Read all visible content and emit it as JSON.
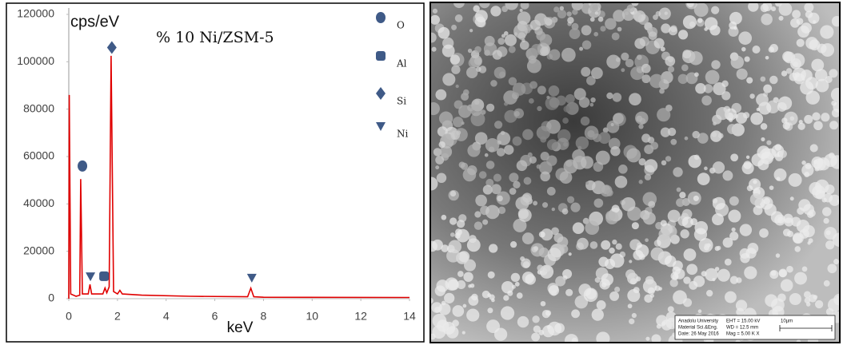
{
  "chart_data": {
    "type": "line",
    "title": "% 10 Ni/ZSM-5",
    "ylabel": "cps/eV",
    "xlabel": "keV",
    "xlim": [
      0,
      14
    ],
    "xticks": [
      0,
      2,
      4,
      6,
      8,
      10,
      12,
      14
    ],
    "ylim": [
      0,
      120000
    ],
    "yticks": [
      0,
      20000,
      40000,
      60000,
      80000,
      100000,
      120000
    ],
    "spectrum": {
      "color": "#e00000",
      "x": [
        0,
        0.02,
        0.08,
        0.3,
        0.45,
        0.49,
        0.56,
        0.8,
        0.87,
        0.94,
        1.4,
        1.49,
        1.56,
        1.66,
        1.74,
        1.84,
        2.0,
        2.1,
        2.2,
        3,
        5,
        7.35,
        7.48,
        7.6,
        8,
        14
      ],
      "values": [
        0,
        86000,
        2000,
        1000,
        1500,
        50500,
        2000,
        2000,
        6000,
        2000,
        2000,
        4500,
        2500,
        5000,
        102500,
        3000,
        2000,
        3500,
        2000,
        1500,
        1000,
        800,
        4400,
        800,
        600,
        500
      ]
    },
    "series": [
      {
        "name": "O",
        "shape": "circle",
        "color": "#3f5a87",
        "x": [
          0.56
        ],
        "values": [
          56000
        ]
      },
      {
        "name": "Al",
        "shape": "square",
        "color": "#3f5a87",
        "x": [
          1.45
        ],
        "values": [
          9500
        ]
      },
      {
        "name": "Si",
        "shape": "diamond",
        "color": "#3f5a87",
        "x": [
          1.77
        ],
        "values": [
          106000
        ]
      },
      {
        "name": "Ni",
        "shape": "triangle",
        "color": "#3f5a87",
        "x": [
          0.89,
          7.52
        ],
        "values": [
          9400,
          8800
        ]
      }
    ]
  },
  "image": {
    "info": [
      "Anadolu University",
      "Material Sci.&Eng.",
      "Date: 26 May 2016",
      "EHT = 15.00 kV",
      "WD = 12.5 mm",
      "Mag = 5.00 K X",
      "10µm"
    ]
  }
}
